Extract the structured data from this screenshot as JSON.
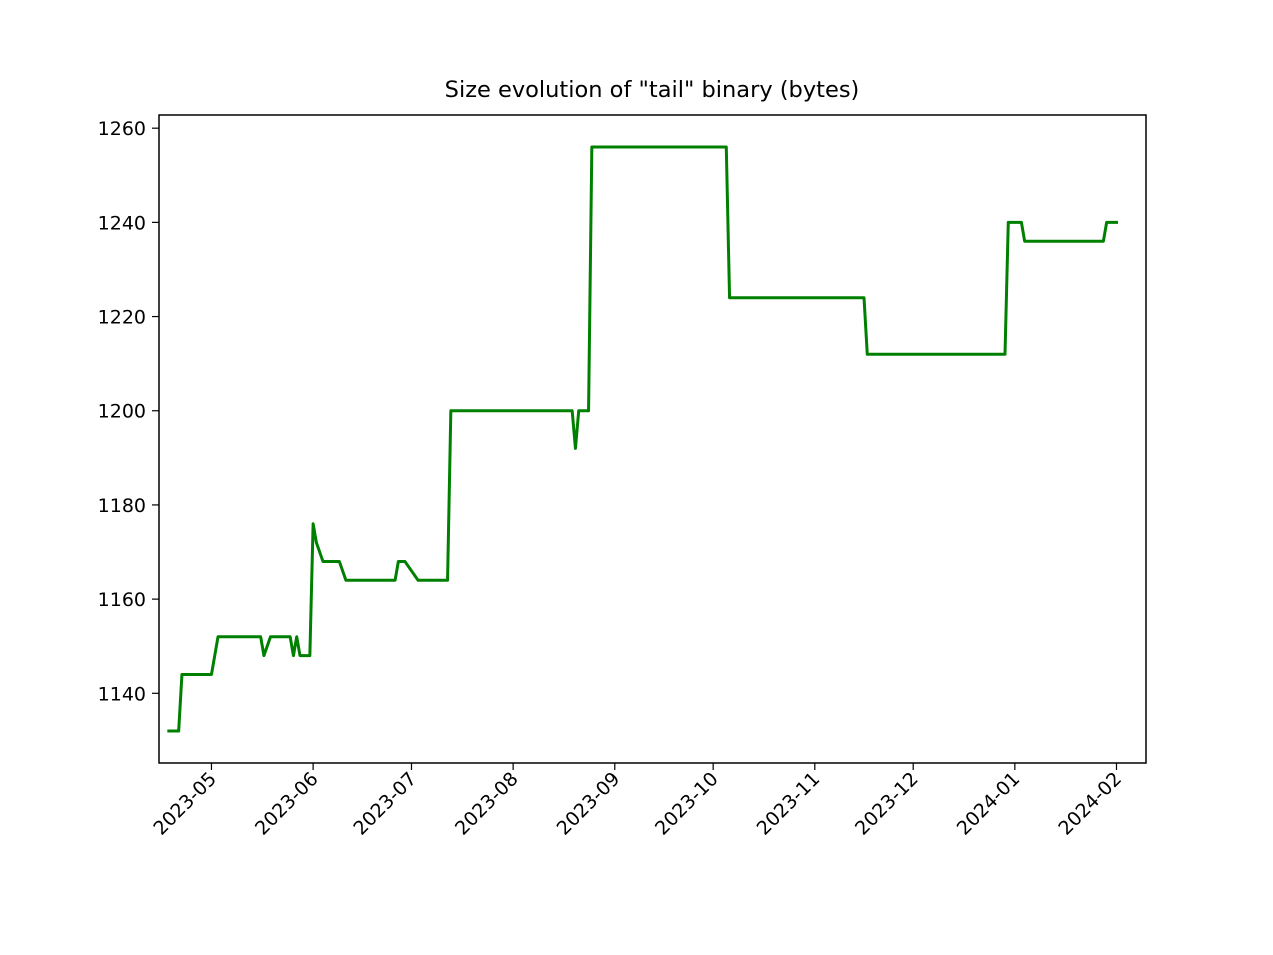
{
  "chart_data": {
    "type": "line",
    "title": "Size evolution of \"tail\" binary (bytes)",
    "xlabel": "",
    "ylabel": "",
    "x_axis_type": "date",
    "xlim": [
      "2023-04-15",
      "2024-02-10"
    ],
    "ylim": [
      1125.2,
      1262.8
    ],
    "x_tick_labels": [
      "2023-05",
      "2023-06",
      "2023-07",
      "2023-08",
      "2023-09",
      "2023-10",
      "2023-11",
      "2023-12",
      "2024-01",
      "2024-02"
    ],
    "y_tick_labels": [
      "1140",
      "1160",
      "1180",
      "1200",
      "1220",
      "1240",
      "1260"
    ],
    "grid": false,
    "legend": null,
    "series": [
      {
        "color": "#008000",
        "points": [
          [
            "2023-04-18",
            1132
          ],
          [
            "2023-04-21",
            1132
          ],
          [
            "2023-04-22",
            1144
          ],
          [
            "2023-05-01",
            1144
          ],
          [
            "2023-05-02",
            1148
          ],
          [
            "2023-05-03",
            1152
          ],
          [
            "2023-05-16",
            1152
          ],
          [
            "2023-05-17",
            1148
          ],
          [
            "2023-05-19",
            1152
          ],
          [
            "2023-05-25",
            1152
          ],
          [
            "2023-05-26",
            1148
          ],
          [
            "2023-05-27",
            1152
          ],
          [
            "2023-05-28",
            1148
          ],
          [
            "2023-05-31",
            1148
          ],
          [
            "2023-06-01",
            1176
          ],
          [
            "2023-06-02",
            1172
          ],
          [
            "2023-06-04",
            1168
          ],
          [
            "2023-06-09",
            1168
          ],
          [
            "2023-06-11",
            1164
          ],
          [
            "2023-06-26",
            1164
          ],
          [
            "2023-06-27",
            1168
          ],
          [
            "2023-06-29",
            1168
          ],
          [
            "2023-07-03",
            1164
          ],
          [
            "2023-07-12",
            1164
          ],
          [
            "2023-07-13",
            1200
          ],
          [
            "2023-08-19",
            1200
          ],
          [
            "2023-08-20",
            1192
          ],
          [
            "2023-08-21",
            1200
          ],
          [
            "2023-08-24",
            1200
          ],
          [
            "2023-08-25",
            1256
          ],
          [
            "2023-10-05",
            1256
          ],
          [
            "2023-10-06",
            1224
          ],
          [
            "2023-11-16",
            1224
          ],
          [
            "2023-11-17",
            1212
          ],
          [
            "2023-12-29",
            1212
          ],
          [
            "2023-12-30",
            1240
          ],
          [
            "2024-01-03",
            1240
          ],
          [
            "2024-01-04",
            1236
          ],
          [
            "2024-01-28",
            1236
          ],
          [
            "2024-01-29",
            1240
          ],
          [
            "2024-02-01",
            1240
          ]
        ]
      }
    ]
  }
}
